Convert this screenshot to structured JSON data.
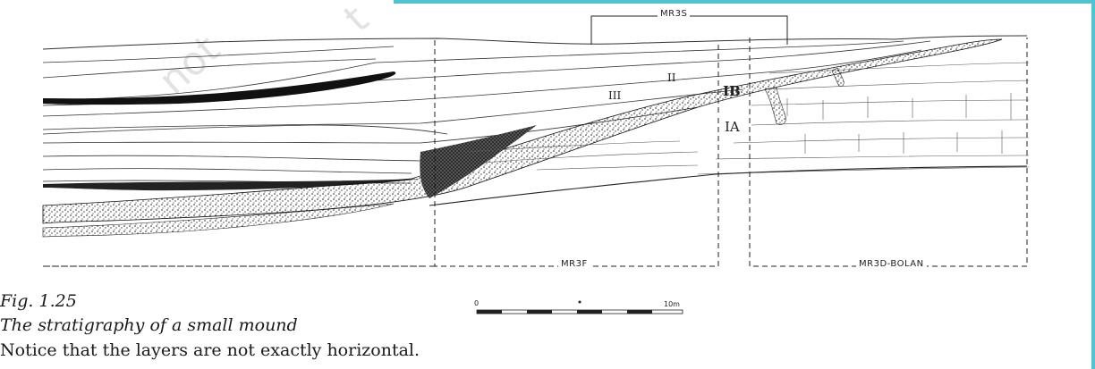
{
  "diagram": {
    "trench_labels": {
      "top": "MR3S",
      "left": "MR3F",
      "right": "MR3D-BOLAN"
    },
    "layer_labels": {
      "upper": "IB",
      "lower": "IA",
      "ii": "II",
      "iii": "III"
    },
    "scale": {
      "start": "0",
      "end": "10m"
    }
  },
  "caption": {
    "figure_number": "Fig. 1.25",
    "title": "The stratigraphy of a small mound",
    "note": "Notice that the layers are not exactly horizontal."
  }
}
